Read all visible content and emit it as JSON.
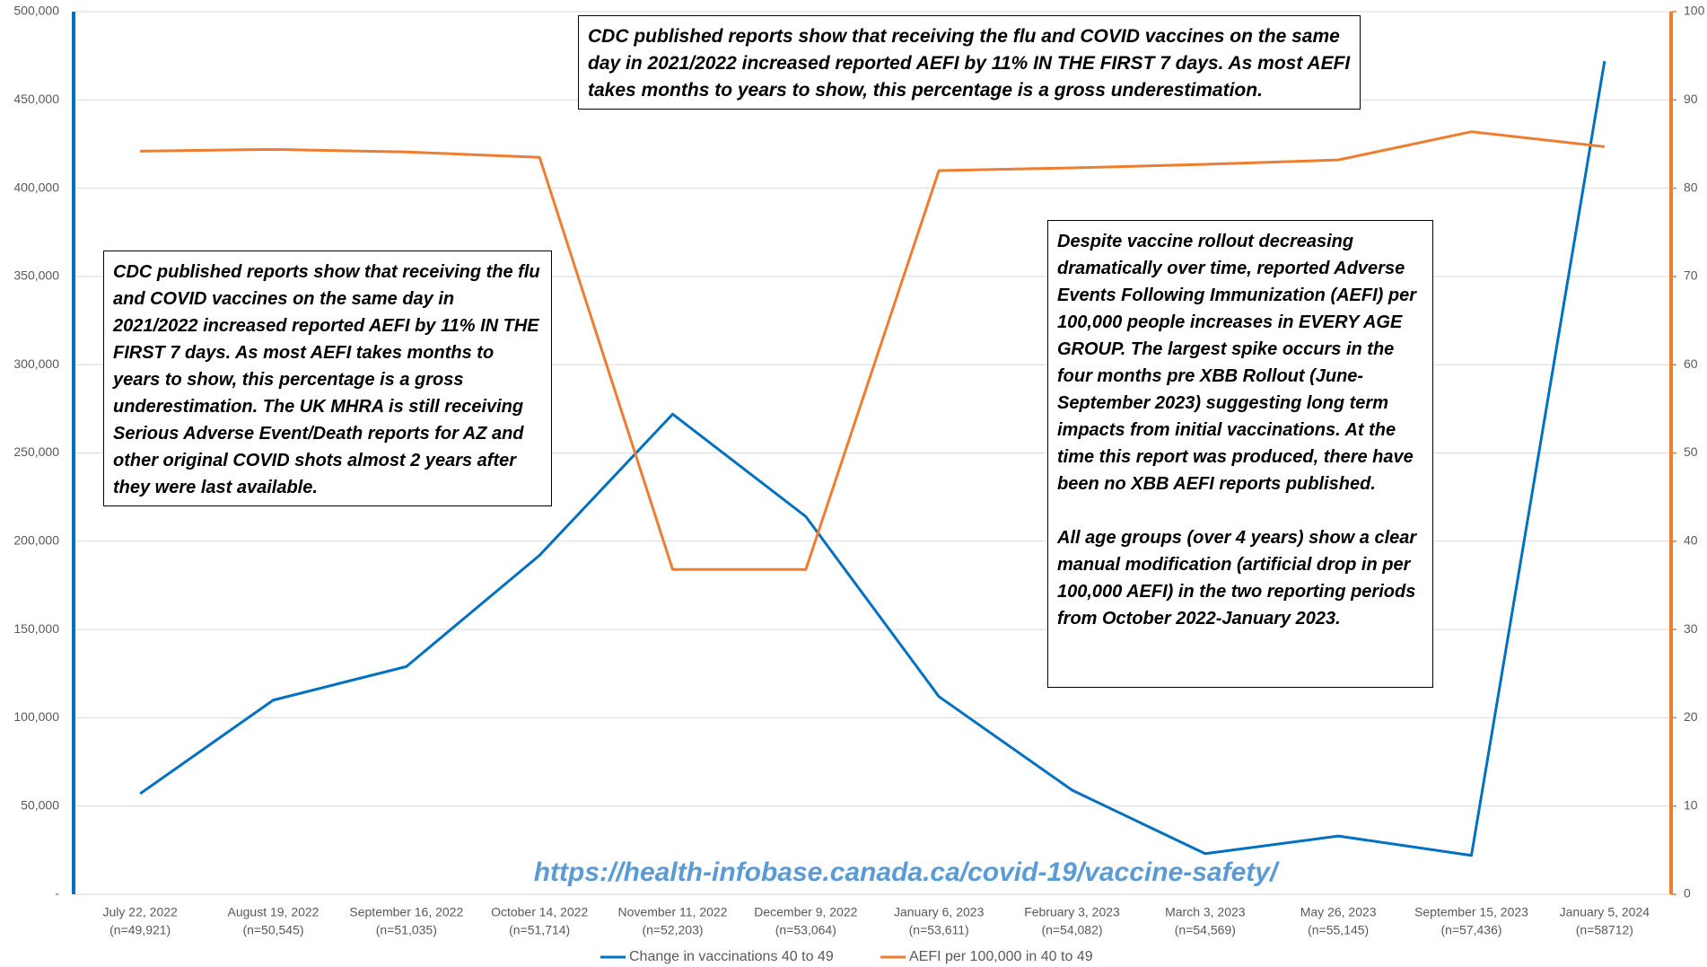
{
  "chart_data": {
    "type": "line",
    "categories": [
      "July 22, 2022",
      "August 19, 2022",
      "September 16, 2022",
      "October 14, 2022",
      "November 11, 2022",
      "December 9, 2022",
      "January 6, 2023",
      "February 3, 2023",
      "March 3, 2023",
      "May 26, 2023",
      "September 15, 2023",
      "January 5, 2024"
    ],
    "category_notes": [
      "(n=49,921)",
      "(n=50,545)",
      "(n=51,035)",
      "(n=51,714)",
      "(n=52,203)",
      "(n=53,064)",
      "(n=53,611)",
      "(n=54,082)",
      "(n=54,569)",
      "(n=55,145)",
      "(n=57,436)",
      "(n=58712)"
    ],
    "series": [
      {
        "name": "Change in vaccinations 40 to 49",
        "color": "#0070c0",
        "values": [
          57000,
          110000,
          129000,
          192000,
          272000,
          214000,
          112000,
          59000,
          23000,
          33000,
          22000,
          472000
        ]
      },
      {
        "name": "AEFI per 100,000 in 40 to 49",
        "color": "#ed7d31",
        "axis": "y2",
        "values": [
          84.2,
          84.4,
          84.1,
          83.5,
          36.8,
          36.8,
          82.0,
          82.3,
          82.7,
          83.2,
          86.4,
          84.7
        ]
      }
    ],
    "ylim": [
      0,
      500000
    ],
    "yticks": [
      {
        "value": 0,
        "label": "-"
      },
      {
        "value": 50000,
        "label": "50,000"
      },
      {
        "value": 100000,
        "label": "100,000"
      },
      {
        "value": 150000,
        "label": "150,000"
      },
      {
        "value": 200000,
        "label": "200,000"
      },
      {
        "value": 250000,
        "label": "250,000"
      },
      {
        "value": 300000,
        "label": "300,000"
      },
      {
        "value": 350000,
        "label": "350,000"
      },
      {
        "value": 400000,
        "label": "400,000"
      },
      {
        "value": 450000,
        "label": "450,000"
      },
      {
        "value": 500000,
        "label": "500,000"
      }
    ],
    "y2lim": [
      0,
      100
    ],
    "y2ticks": [
      0,
      10,
      20,
      30,
      40,
      50,
      60,
      70,
      80,
      90,
      100
    ],
    "grid": true,
    "legend": "bottom",
    "annotations": [
      {
        "text": "CDC published reports show that receiving the flu and COVID vaccines on the same day in 2021/2022 increased reported AEFI by 11% IN THE FIRST 7 days. As most AEFI takes months to years to show, this percentage is a gross underestimation."
      },
      {
        "text": "CDC published reports show that receiving the flu and COVID vaccines on the same day in 2021/2022 increased reported AEFI by 11% IN THE FIRST 7 days. As most AEFI takes months to years to show, this percentage is a gross underestimation. The UK MHRA is still receiving Serious Adverse Event/Death reports for AZ and other original COVID shots almost 2 years after they were last available."
      },
      {
        "paragraphs": [
          "Despite vaccine rollout decreasing dramatically over time, reported Adverse Events Following Immunization (AEFI) per 100,000 people increases in EVERY AGE GROUP. The largest spike occurs in the four months pre XBB Rollout (June-September 2023) suggesting long term impacts from initial vaccinations. At the time this report was produced, there have been no XBB AEFI reports published.",
          "All age groups (over 4 years) show a clear manual modification (artificial drop in per 100,000 AEFI) in the two reporting periods from October 2022-January 2023."
        ]
      }
    ],
    "source_url": "https://health-infobase.canada.ca/covid-19/vaccine-safety/"
  }
}
